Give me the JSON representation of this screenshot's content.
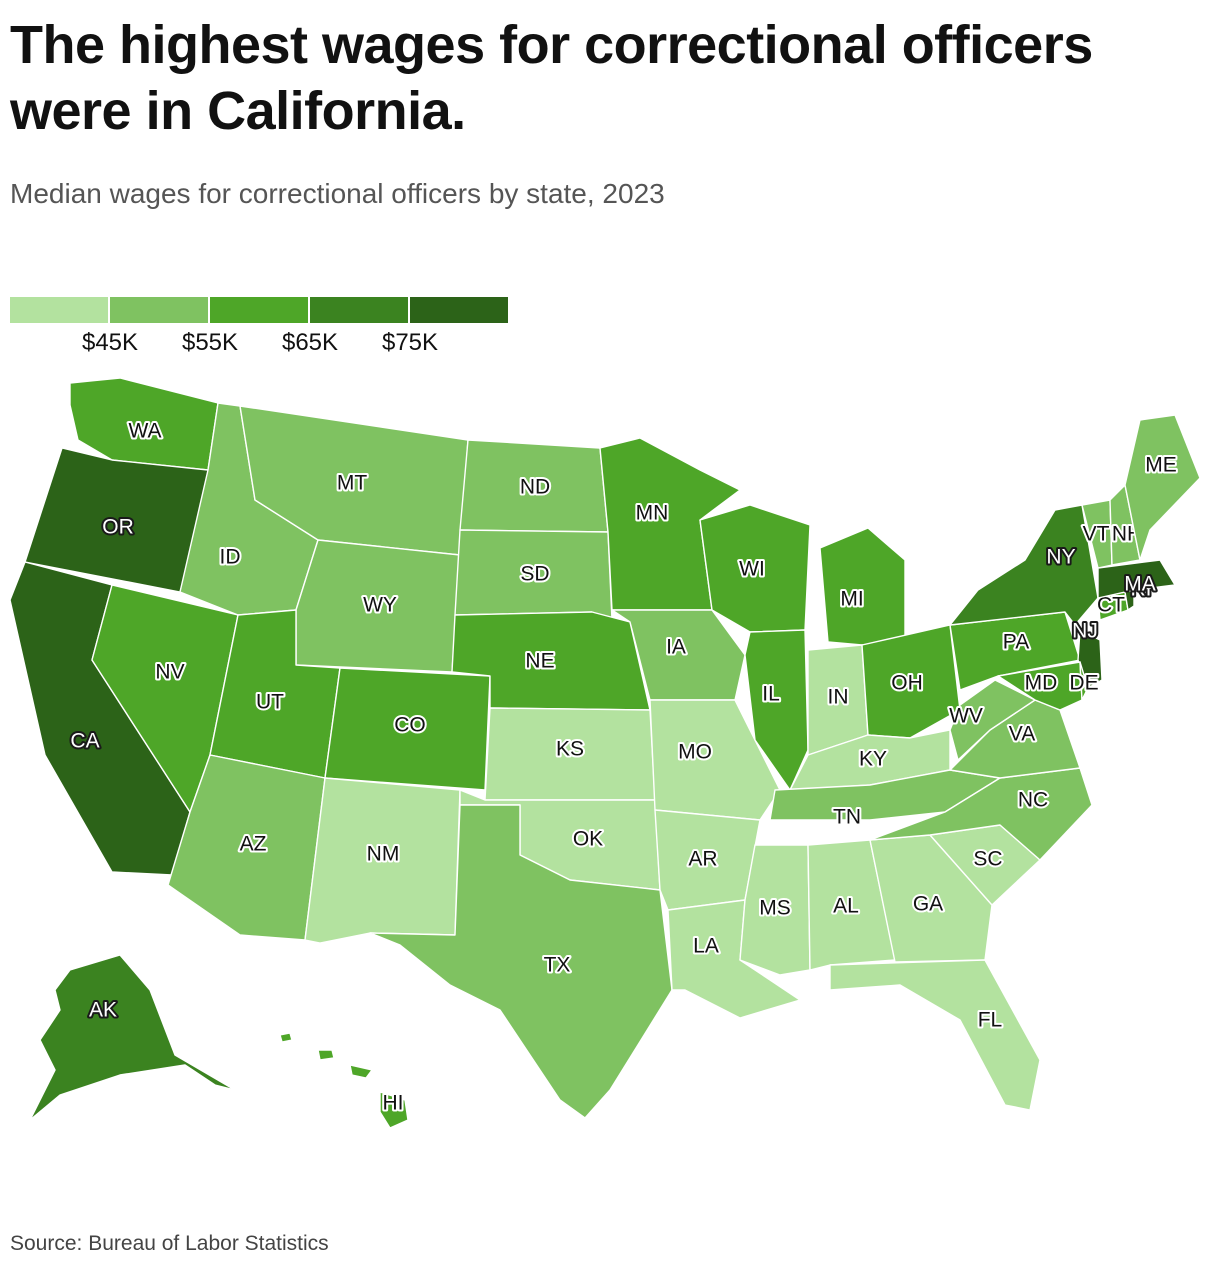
{
  "title": "The highest wages for correctional officers were in California.",
  "subtitle": "Median wages for correctional officers by state, 2023",
  "source": "Source: Bureau of Labor Statistics",
  "legend": {
    "colors": [
      "#b3e29f",
      "#7fc261",
      "#4ea628",
      "#3b8320",
      "#2c6318"
    ],
    "labels": [
      "$45K",
      "$55K",
      "$65K",
      "$75K"
    ]
  },
  "chart_data": {
    "type": "choropleth",
    "bins": [
      {
        "range": "< $45K",
        "color": "#b3e29f"
      },
      {
        "range": "$45K–$55K",
        "color": "#7fc261"
      },
      {
        "range": "$55K–$65K",
        "color": "#4ea628"
      },
      {
        "range": "$65K–$75K",
        "color": "#3b8320"
      },
      {
        "range": "> $75K",
        "color": "#2c6318"
      }
    ],
    "states": [
      {
        "abbr": "WA",
        "bin": 2
      },
      {
        "abbr": "OR",
        "bin": 4
      },
      {
        "abbr": "CA",
        "bin": 4
      },
      {
        "abbr": "NV",
        "bin": 2
      },
      {
        "abbr": "ID",
        "bin": 1
      },
      {
        "abbr": "MT",
        "bin": 1
      },
      {
        "abbr": "WY",
        "bin": 1
      },
      {
        "abbr": "UT",
        "bin": 2
      },
      {
        "abbr": "AZ",
        "bin": 1
      },
      {
        "abbr": "CO",
        "bin": 2
      },
      {
        "abbr": "NM",
        "bin": 0
      },
      {
        "abbr": "ND",
        "bin": 1
      },
      {
        "abbr": "SD",
        "bin": 1
      },
      {
        "abbr": "NE",
        "bin": 2
      },
      {
        "abbr": "KS",
        "bin": 0
      },
      {
        "abbr": "OK",
        "bin": 0
      },
      {
        "abbr": "TX",
        "bin": 1
      },
      {
        "abbr": "MN",
        "bin": 2
      },
      {
        "abbr": "IA",
        "bin": 1
      },
      {
        "abbr": "MO",
        "bin": 0
      },
      {
        "abbr": "AR",
        "bin": 0
      },
      {
        "abbr": "LA",
        "bin": 0
      },
      {
        "abbr": "WI",
        "bin": 2
      },
      {
        "abbr": "IL",
        "bin": 2
      },
      {
        "abbr": "MI",
        "bin": 2
      },
      {
        "abbr": "IN",
        "bin": 0
      },
      {
        "abbr": "OH",
        "bin": 2
      },
      {
        "abbr": "KY",
        "bin": 0
      },
      {
        "abbr": "TN",
        "bin": 1
      },
      {
        "abbr": "MS",
        "bin": 0
      },
      {
        "abbr": "AL",
        "bin": 0
      },
      {
        "abbr": "GA",
        "bin": 0
      },
      {
        "abbr": "FL",
        "bin": 0
      },
      {
        "abbr": "SC",
        "bin": 0
      },
      {
        "abbr": "NC",
        "bin": 1
      },
      {
        "abbr": "VA",
        "bin": 1
      },
      {
        "abbr": "WV",
        "bin": 1
      },
      {
        "abbr": "PA",
        "bin": 2
      },
      {
        "abbr": "NY",
        "bin": 3
      },
      {
        "abbr": "NJ",
        "bin": 4
      },
      {
        "abbr": "MD",
        "bin": 2
      },
      {
        "abbr": "DE",
        "bin": 2
      },
      {
        "abbr": "CT",
        "bin": 2
      },
      {
        "abbr": "RI",
        "bin": 4
      },
      {
        "abbr": "MA",
        "bin": 4
      },
      {
        "abbr": "VT",
        "bin": 1
      },
      {
        "abbr": "NH",
        "bin": 1
      },
      {
        "abbr": "ME",
        "bin": 1
      },
      {
        "abbr": "AK",
        "bin": 3
      },
      {
        "abbr": "HI",
        "bin": 2
      }
    ]
  }
}
